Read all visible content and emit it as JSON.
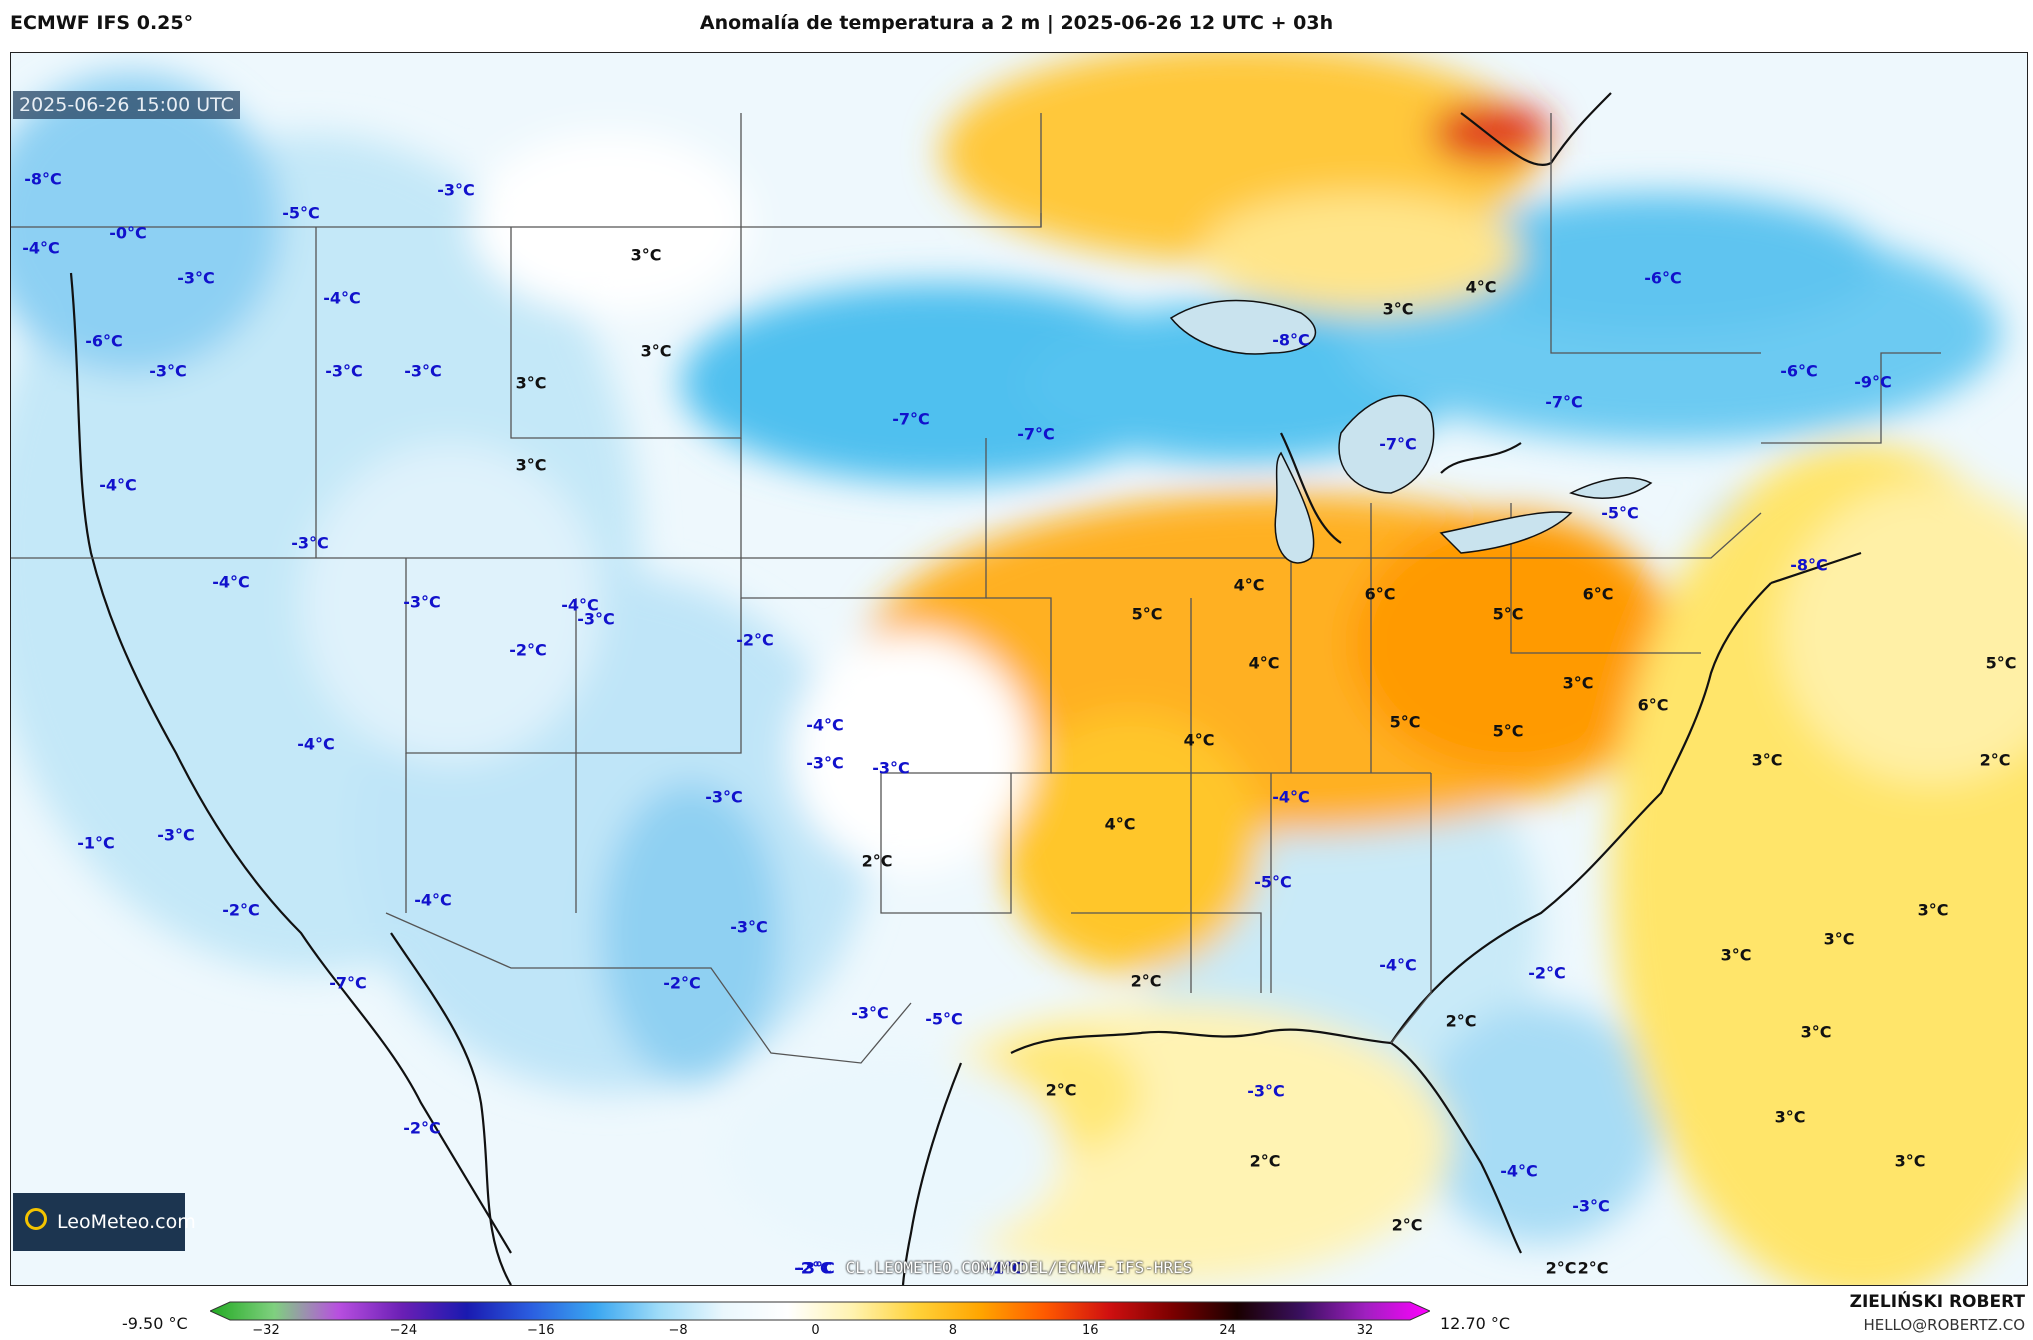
{
  "header": {
    "model": "ECMWF IFS 0.25°",
    "title": "Anomalía de temperatura a 2 m | 2025-06-26 12 UTC + 03h"
  },
  "valid_time": "2025-06-26 15:00 UTC",
  "logo_text": "LeoMeteo.com",
  "watermark": "CL.LEOMETEO.COM/MODEL/ECMWF-IFS-HRES",
  "colorbar": {
    "min_label": "-9.50 °C",
    "max_label": "12.70 °C",
    "ticks": [
      "−32",
      "−24",
      "−16",
      "−8",
      "0",
      "8",
      "16",
      "24",
      "32"
    ],
    "colors": [
      "#22aa22",
      "#7fd07f",
      "#b84fe0",
      "#6a1fb5",
      "#1a1ab0",
      "#2b5ee0",
      "#3aa6f0",
      "#9fdcf8",
      "#eaf7fd",
      "#ffffff",
      "#fff3b0",
      "#ffd23a",
      "#ffa500",
      "#ff5a00",
      "#d01010",
      "#7a0000",
      "#1a0000",
      "#3a1060",
      "#a020c0",
      "#ff00ff"
    ]
  },
  "credit": {
    "name": "ZIELIŃSKI ROBERT",
    "email": "HELLO@ROBERTZ.CO"
  },
  "anomaly_labels": [
    {
      "text": "-8°C",
      "kind": "cold"
    },
    {
      "text": "-4°C",
      "kind": "cold"
    },
    {
      "text": "-0°C",
      "kind": "cold"
    },
    {
      "text": "-5°C",
      "kind": "cold"
    },
    {
      "text": "-3°C",
      "kind": "cold"
    },
    {
      "text": "-3°C",
      "kind": "cold"
    },
    {
      "text": "-4°C",
      "kind": "cold"
    },
    {
      "text": "-6°C",
      "kind": "cold"
    },
    {
      "text": "-3°C",
      "kind": "cold"
    },
    {
      "text": "-3°C",
      "kind": "cold"
    },
    {
      "text": "-3°C",
      "kind": "cold"
    },
    {
      "text": "-4°C",
      "kind": "cold"
    },
    {
      "text": "-3°C",
      "kind": "cold"
    },
    {
      "text": "-4°C",
      "kind": "cold"
    },
    {
      "text": "-3°C",
      "kind": "cold"
    },
    {
      "text": "-4°C",
      "kind": "cold"
    },
    {
      "text": "-2°C",
      "kind": "cold"
    },
    {
      "text": "-4°C",
      "kind": "cold"
    },
    {
      "text": "-2°C",
      "kind": "cold"
    },
    {
      "text": "-4°C",
      "kind": "cold"
    },
    {
      "text": "-3°C",
      "kind": "cold"
    },
    {
      "text": "-3°C",
      "kind": "cold"
    },
    {
      "text": "-3°C",
      "kind": "cold"
    },
    {
      "text": "-3°C",
      "kind": "cold"
    },
    {
      "text": "-1°C",
      "kind": "cold"
    },
    {
      "text": "-3°C",
      "kind": "cold"
    },
    {
      "text": "-2°C",
      "kind": "cold"
    },
    {
      "text": "-4°C",
      "kind": "cold"
    },
    {
      "text": "-3°C",
      "kind": "cold"
    },
    {
      "text": "-7°C",
      "kind": "cold"
    },
    {
      "text": "-2°C",
      "kind": "cold"
    },
    {
      "text": "-3°C",
      "kind": "cold"
    },
    {
      "text": "-5°C",
      "kind": "cold"
    },
    {
      "text": "-2°C",
      "kind": "cold"
    },
    {
      "text": "-2°C",
      "kind": "cold"
    },
    {
      "text": "-1°C",
      "kind": "cold"
    },
    {
      "text": "-3°C",
      "kind": "cold"
    },
    {
      "text": "-7°C",
      "kind": "cold"
    },
    {
      "text": "-7°C",
      "kind": "cold"
    },
    {
      "text": "-8°C",
      "kind": "cold"
    },
    {
      "text": "-7°C",
      "kind": "cold"
    },
    {
      "text": "-7°C",
      "kind": "cold"
    },
    {
      "text": "-6°C",
      "kind": "cold"
    },
    {
      "text": "-6°C",
      "kind": "cold"
    },
    {
      "text": "-9°C",
      "kind": "cold"
    },
    {
      "text": "-5°C",
      "kind": "cold"
    },
    {
      "text": "-8°C",
      "kind": "cold"
    },
    {
      "text": "-4°C",
      "kind": "cold"
    },
    {
      "text": "-5°C",
      "kind": "cold"
    },
    {
      "text": "-4°C",
      "kind": "cold"
    },
    {
      "text": "-2°C",
      "kind": "cold"
    },
    {
      "text": "-3°C",
      "kind": "cold"
    },
    {
      "text": "-4°C",
      "kind": "cold"
    },
    {
      "text": "-3°C",
      "kind": "cold"
    },
    {
      "text": "-2°C",
      "kind": "cold"
    },
    {
      "text": "3°C",
      "kind": "warm"
    },
    {
      "text": "3°C",
      "kind": "warm"
    },
    {
      "text": "3°C",
      "kind": "warm"
    },
    {
      "text": "3°C",
      "kind": "warm"
    },
    {
      "text": "3°C",
      "kind": "warm"
    },
    {
      "text": "4°C",
      "kind": "warm"
    },
    {
      "text": "4°C",
      "kind": "warm"
    },
    {
      "text": "6°C",
      "kind": "warm"
    },
    {
      "text": "6°C",
      "kind": "warm"
    },
    {
      "text": "5°C",
      "kind": "warm"
    },
    {
      "text": "5°C",
      "kind": "warm"
    },
    {
      "text": "4°C",
      "kind": "warm"
    },
    {
      "text": "3°C",
      "kind": "warm"
    },
    {
      "text": "6°C",
      "kind": "warm"
    },
    {
      "text": "4°C",
      "kind": "warm"
    },
    {
      "text": "5°C",
      "kind": "warm"
    },
    {
      "text": "5°C",
      "kind": "warm"
    },
    {
      "text": "4°C",
      "kind": "warm"
    },
    {
      "text": "2°C",
      "kind": "warm"
    },
    {
      "text": "2°C",
      "kind": "warm"
    },
    {
      "text": "5°C",
      "kind": "warm"
    },
    {
      "text": "3°C",
      "kind": "warm"
    },
    {
      "text": "2°C",
      "kind": "warm"
    },
    {
      "text": "3°C",
      "kind": "warm"
    },
    {
      "text": "3°C",
      "kind": "warm"
    },
    {
      "text": "3°C",
      "kind": "warm"
    },
    {
      "text": "3°C",
      "kind": "warm"
    },
    {
      "text": "3°C",
      "kind": "warm"
    },
    {
      "text": "3°C",
      "kind": "warm"
    },
    {
      "text": "2°C",
      "kind": "warm"
    },
    {
      "text": "2°C",
      "kind": "warm"
    },
    {
      "text": "2°C",
      "kind": "warm"
    },
    {
      "text": "2°C",
      "kind": "warm"
    },
    {
      "text": "2°C",
      "kind": "warm"
    },
    {
      "text": "2°C",
      "kind": "warm"
    },
    {
      "text": "2°C",
      "kind": "warm"
    }
  ]
}
